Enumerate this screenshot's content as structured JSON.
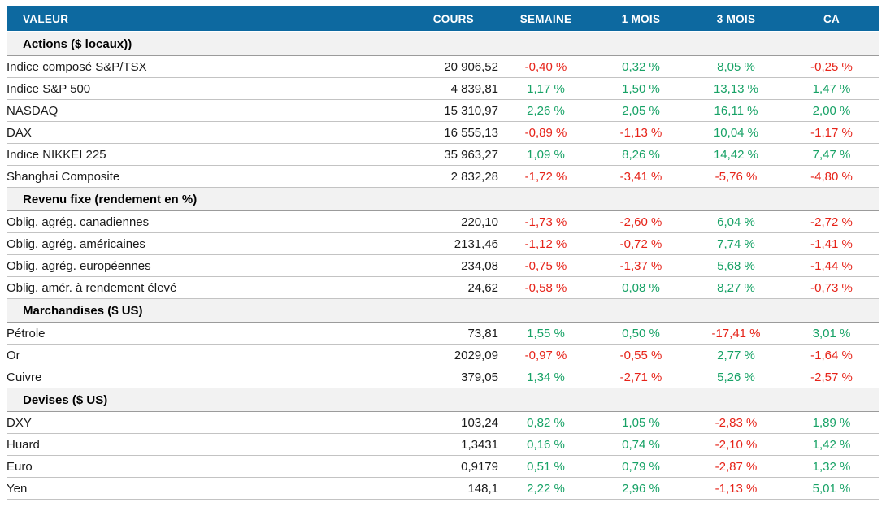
{
  "colors": {
    "header_bg": "#0d69a0",
    "header_text": "#ffffff",
    "positive": "#17a266",
    "negative": "#e62319",
    "section_bg": "#f2f2f2"
  },
  "columns": [
    "VALEUR",
    "COURS",
    "SEMAINE",
    "1 MOIS",
    "3 MOIS",
    "CA"
  ],
  "sections": [
    {
      "title": "Actions ($ locaux))",
      "rows": [
        {
          "label": "Indice composé S&P/TSX",
          "cours": "20 906,52",
          "semaine": "-0,40 %",
          "mois1": "0,32 %",
          "mois3": "8,05 %",
          "ca": "-0,25 %"
        },
        {
          "label": "Indice S&P 500",
          "cours": "4 839,81",
          "semaine": "1,17 %",
          "mois1": "1,50 %",
          "mois3": "13,13 %",
          "ca": "1,47 %"
        },
        {
          "label": "NASDAQ",
          "cours": "15 310,97",
          "semaine": "2,26 %",
          "mois1": "2,05 %",
          "mois3": "16,11 %",
          "ca": "2,00 %"
        },
        {
          "label": "DAX",
          "cours": "16 555,13",
          "semaine": "-0,89 %",
          "mois1": "-1,13 %",
          "mois3": "10,04 %",
          "ca": "-1,17 %"
        },
        {
          "label": "Indice NIKKEI 225",
          "cours": "35 963,27",
          "semaine": "1,09 %",
          "mois1": "8,26 %",
          "mois3": "14,42 %",
          "ca": "7,47 %"
        },
        {
          "label": "Shanghai Composite",
          "cours": "2 832,28",
          "semaine": "-1,72 %",
          "mois1": "-3,41 %",
          "mois3": "-5,76 %",
          "ca": "-4,80 %"
        }
      ]
    },
    {
      "title": "Revenu fixe (rendement en %)",
      "rows": [
        {
          "label": "Oblig. agrég. canadiennes",
          "cours": "220,10",
          "semaine": "-1,73 %",
          "mois1": "-2,60 %",
          "mois3": "6,04 %",
          "ca": "-2,72 %"
        },
        {
          "label": "Oblig. agrég. américaines",
          "cours": "2131,46",
          "semaine": "-1,12 %",
          "mois1": "-0,72 %",
          "mois3": "7,74 %",
          "ca": "-1,41 %"
        },
        {
          "label": "Oblig. agrég. européennes",
          "cours": "234,08",
          "semaine": "-0,75 %",
          "mois1": "-1,37 %",
          "mois3": "5,68 %",
          "ca": "-1,44 %"
        },
        {
          "label": "Oblig. amér. à rendement élevé",
          "cours": "24,62",
          "semaine": "-0,58 %",
          "mois1": "0,08 %",
          "mois3": "8,27 %",
          "ca": "-0,73 %"
        }
      ]
    },
    {
      "title": "Marchandises ($ US)",
      "rows": [
        {
          "label": "Pétrole",
          "cours": "73,81",
          "semaine": "1,55 %",
          "mois1": "0,50 %",
          "mois3": "-17,41 %",
          "ca": "3,01 %"
        },
        {
          "label": "Or",
          "cours": "2029,09",
          "semaine": "-0,97 %",
          "mois1": "-0,55 %",
          "mois3": "2,77 %",
          "ca": "-1,64 %"
        },
        {
          "label": "Cuivre",
          "cours": "379,05",
          "semaine": "1,34 %",
          "mois1": "-2,71 %",
          "mois3": "5,26 %",
          "ca": "-2,57 %"
        }
      ]
    },
    {
      "title": "Devises ($ US)",
      "rows": [
        {
          "label": "DXY",
          "cours": "103,24",
          "semaine": "0,82 %",
          "mois1": "1,05 %",
          "mois3": "-2,83 %",
          "ca": "1,89 %"
        },
        {
          "label": "Huard",
          "cours": "1,3431",
          "semaine": "0,16 %",
          "mois1": "0,74 %",
          "mois3": "-2,10 %",
          "ca": "1,42 %"
        },
        {
          "label": "Euro",
          "cours": "0,9179",
          "semaine": "0,51 %",
          "mois1": "0,79 %",
          "mois3": "-2,87 %",
          "ca": "1,32 %"
        },
        {
          "label": "Yen",
          "cours": "148,1",
          "semaine": "2,22 %",
          "mois1": "2,96 %",
          "mois3": "-1,13 %",
          "ca": "5,01 %"
        }
      ]
    }
  ]
}
